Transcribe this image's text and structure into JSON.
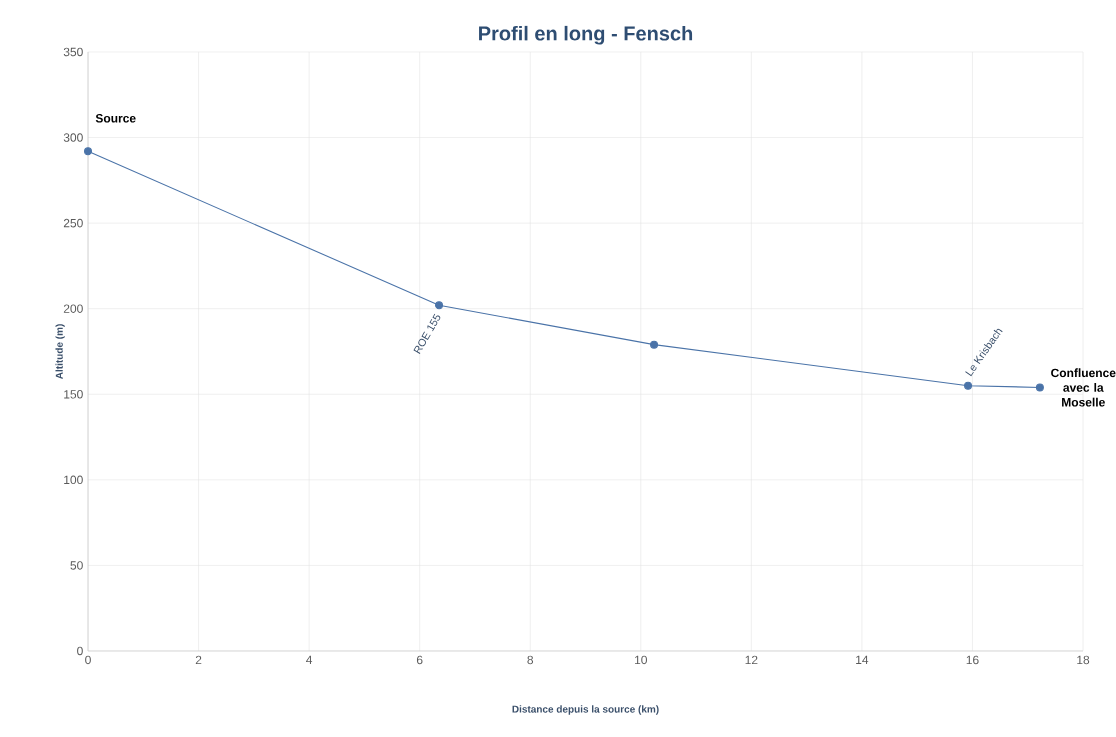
{
  "chart_data": {
    "type": "line",
    "title": "Profil en long - Fensch",
    "xlabel": "Distance depuis la source (km)",
    "ylabel": "Altitude (m)",
    "x": [
      0,
      6.35,
      10.24,
      15.92,
      17.22
    ],
    "series": [
      {
        "color": "#4a73a8",
        "values": [
          292,
          202,
          179,
          155,
          154
        ]
      }
    ],
    "xlim": [
      0,
      18
    ],
    "ylim": [
      0,
      350
    ],
    "xticks": [
      0,
      2,
      4,
      6,
      8,
      10,
      12,
      14,
      16,
      18
    ],
    "yticks": [
      0,
      50,
      100,
      150,
      200,
      250,
      300,
      350
    ],
    "grid": true,
    "marker": "circle",
    "line_style": "solid",
    "legend": false,
    "annotations": [
      {
        "text": "Source",
        "x": 0,
        "y": 292
      },
      {
        "text": "ROE 155",
        "x": 6.35,
        "y": 202
      },
      {
        "text": "Le Krisbach",
        "x": 15.92,
        "y": 155
      },
      {
        "text": "Confluence avec la Moselle",
        "x": 17.22,
        "y": 154
      }
    ]
  }
}
